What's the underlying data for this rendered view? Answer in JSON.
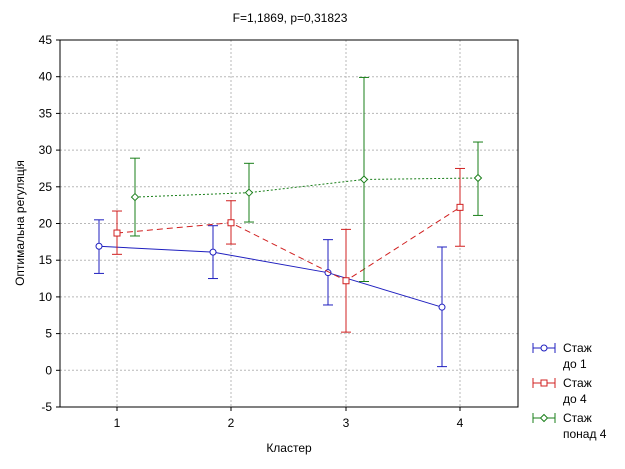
{
  "chart_data": {
    "type": "line",
    "title": "F=1,1869, p=0,31823",
    "xlabel": "Кластер",
    "ylabel": "Оптимальна регуляція",
    "categories": [
      "1",
      "2",
      "3",
      "4"
    ],
    "ylim": [
      -5,
      45
    ],
    "yticks": [
      "-5",
      "0",
      "5",
      "10",
      "15",
      "20",
      "25",
      "30",
      "35",
      "40",
      "45"
    ],
    "grid": true,
    "legend_position": "right-bottom",
    "series": [
      {
        "name_lines": [
          "Стаж",
          "до 1"
        ],
        "color": "#1f1fbf",
        "marker": "circle",
        "line_style": "solid",
        "values": [
          16.9,
          16.1,
          13.3,
          8.6
        ],
        "lower": [
          13.2,
          12.5,
          8.9,
          0.5
        ],
        "upper": [
          20.5,
          19.7,
          17.8,
          16.8
        ]
      },
      {
        "name_lines": [
          "Стаж",
          "до 4"
        ],
        "color": "#d02020",
        "marker": "square",
        "line_style": "dashed",
        "values": [
          18.7,
          20.1,
          12.2,
          22.2
        ],
        "lower": [
          15.8,
          17.2,
          5.2,
          16.9
        ],
        "upper": [
          21.7,
          23.1,
          19.2,
          27.5
        ]
      },
      {
        "name_lines": [
          "Стаж",
          "понад 4"
        ],
        "color": "#1a7f1a",
        "marker": "diamond",
        "line_style": "dotted",
        "values": [
          23.6,
          24.2,
          26.0,
          26.2
        ],
        "lower": [
          18.3,
          20.2,
          12.1,
          21.1
        ],
        "upper": [
          28.9,
          28.2,
          39.9,
          31.1
        ]
      }
    ]
  }
}
